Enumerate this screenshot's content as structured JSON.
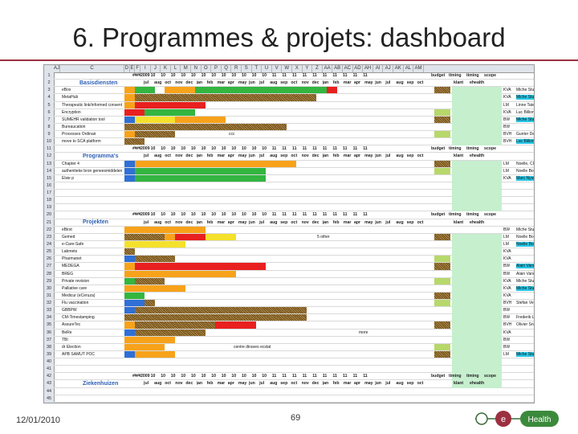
{
  "slide": {
    "title": "6. Programmes & projets: dashboard",
    "date": "12/01/2010",
    "page": "69",
    "logo_text": "Health",
    "logo_letter": "e"
  },
  "colors": {
    "green": "#33b540",
    "orange": "#f7a21a",
    "red": "#e8201f",
    "blue": "#2f6fd6",
    "yellow": "#f5e12b",
    "brown": "#8a6a2c",
    "light_green": "#c6efce",
    "cyan": "#27c6e6",
    "accent": "#9b3040"
  },
  "sheet": {
    "columns": [
      "AJ",
      "C",
      "D",
      "E",
      "F",
      "I",
      "J",
      "K",
      "L",
      "M",
      "N",
      "O",
      "P",
      "Q",
      "R",
      "S",
      "T",
      "U",
      "V",
      "W",
      "X",
      "Y",
      "Z",
      "AA",
      "AB",
      "AC",
      "AD",
      "AH",
      "AI",
      "AJ",
      "AK",
      "AL",
      "AM"
    ],
    "header_row": [
      "jul",
      "aug",
      "oct",
      "nov",
      "dec",
      "jan",
      "feb",
      "mar",
      "apr",
      "may",
      "jun",
      "jul",
      "aug",
      "sep",
      "oct",
      "nov",
      "dec",
      "jan",
      "feb",
      "mar",
      "apr",
      "may",
      "jun",
      "jul",
      "aug",
      "sep",
      "oct"
    ],
    "header_extra": [
      "budget",
      "timing",
      "timing",
      "scope"
    ],
    "year_row": [
      "##",
      "#",
      "#",
      "#",
      "2009",
      "10",
      "10",
      "10",
      "10",
      "10",
      "10",
      "10",
      "10",
      "10",
      "10",
      "10",
      "10",
      "11",
      "11",
      "11",
      "11",
      "11",
      "11",
      "11",
      "11",
      "11",
      "11"
    ],
    "sections": [
      {
        "title": "Basisdiensten",
        "client": "klant",
        "client2": "ehealth"
      },
      {
        "title": "Programma's",
        "client": "klant",
        "client2": "ehealth"
      },
      {
        "title": "Projekten",
        "client": "klant",
        "client2": "ehealth"
      },
      {
        "title": "Ziekenhuizen",
        "client": "klant",
        "client2": "ehealth"
      }
    ],
    "rows": [
      {
        "name": "eBox",
        "owner": "KVA",
        "person": "Miche Stuckens"
      },
      {
        "name": "MetaHub",
        "owner": "KVA",
        "person": "Miche Stuckens"
      },
      {
        "name": "Therapeutic link/informed consent",
        "owner": "LM",
        "person": "Linne Tater"
      },
      {
        "name": "Encryption",
        "owner": "KVA",
        "person": "Luc Billion"
      },
      {
        "name": "SUMEHR validation tool",
        "owner": "BW",
        "person": "Miche Stuckens"
      },
      {
        "name": "Bureaucation",
        "owner": "BW",
        "person": ""
      },
      {
        "name": "Processes Ordinair",
        "owner": "BVH",
        "person": "Gunter De Keyz"
      },
      {
        "name": "move to SCA platform",
        "owner": "BVH",
        "person": "Luc Billion"
      },
      {
        "name": "Chapter 4",
        "owner": "LM",
        "person": "Noelle, CIN, CCI"
      },
      {
        "name": "authentieke bron geneesmiddelen",
        "owner": "LM",
        "person": "Noelle Bouvier"
      },
      {
        "name": "Elsie p",
        "owner": "KVA",
        "person": "Marc Nyssen"
      },
      {
        "name": "eBirst",
        "owner": "BW",
        "person": "Miche Stuckens"
      },
      {
        "name": "Gemed",
        "owner": "LM",
        "person": "Noelle Bouvier"
      },
      {
        "name": "e-Care-Safe",
        "owner": "LM",
        "person": "Noelle Bouvier"
      },
      {
        "name": "Labmets",
        "owner": "KVA",
        "person": ""
      },
      {
        "name": "Pharmanet",
        "owner": "KVA",
        "person": ""
      },
      {
        "name": "MEDEGA",
        "owner": "BW",
        "person": "Alain Vanoverbeke"
      },
      {
        "name": "BREG",
        "owner": "BW",
        "person": "Alain Vanoverbeke"
      },
      {
        "name": "Private revision",
        "owner": "KVA",
        "person": "Miche Stuckens"
      },
      {
        "name": "Palliative care",
        "owner": "KVA",
        "person": "Miche Stuckens"
      },
      {
        "name": "Medicur (eCeruza)",
        "owner": "KVA",
        "person": ""
      },
      {
        "name": "Flu vaccination",
        "owner": "BVH",
        "person": "Stefan Verhoef"
      },
      {
        "name": "GBBPW",
        "owner": "BW",
        "person": ""
      },
      {
        "name": "CM-Timestamping",
        "owner": "BW",
        "person": "Frederik Libert"
      },
      {
        "name": "AssureTec",
        "owner": "BVH",
        "person": "Olivier Sneess"
      },
      {
        "name": "BeRe",
        "owner": "KVA",
        "person": ""
      },
      {
        "name": "TBI",
        "owner": "BW",
        "person": ""
      },
      {
        "name": "dr Election",
        "owner": "BW",
        "person": ""
      },
      {
        "name": "APB SAMUT POC",
        "owner": "LM",
        "person": "Miche Stuckens"
      }
    ],
    "inline_notes": [
      "ccc",
      "5 other",
      "more",
      "centre diraveo ecstat"
    ]
  }
}
